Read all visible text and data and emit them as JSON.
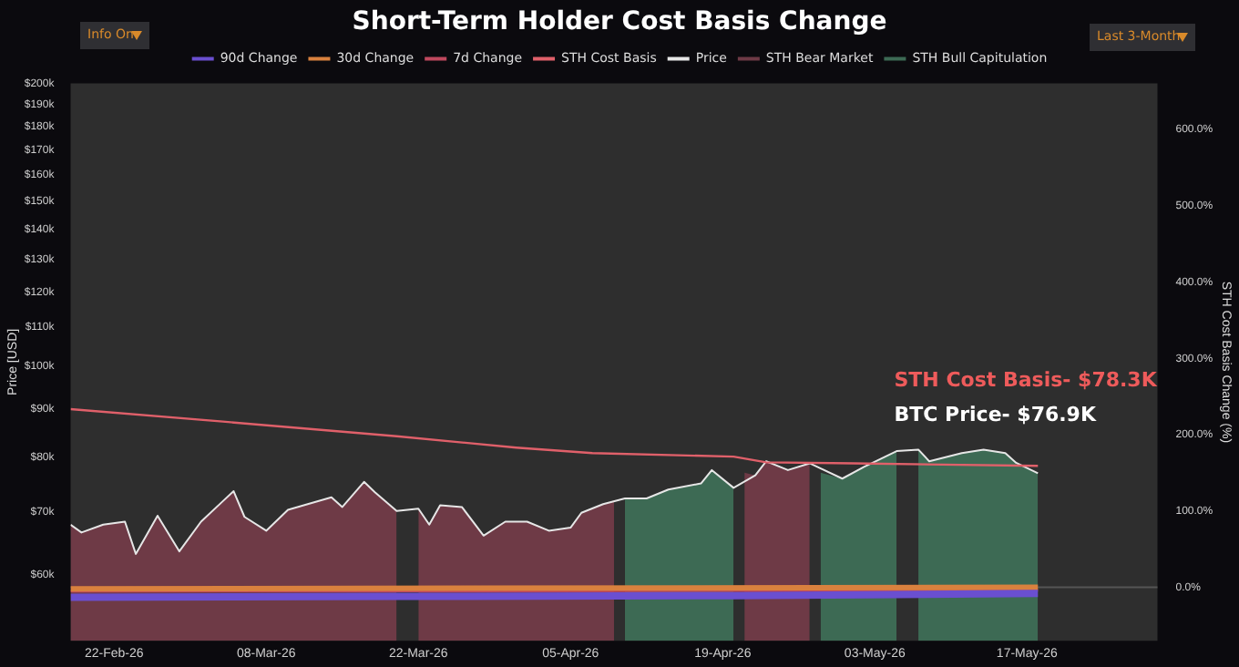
{
  "chart_data": {
    "type": "line",
    "title": "Short-Term Holder Cost Basis Change",
    "ylabel": "Price [USD]",
    "y2label": "STH Cost Basis Change (%)",
    "xlim": [
      "2026-02-18",
      "2026-05-29"
    ],
    "xticks": [
      {
        "value": "2026-02-22",
        "label": "22-Feb-26"
      },
      {
        "value": "2026-03-08",
        "label": "08-Mar-26"
      },
      {
        "value": "2026-03-22",
        "label": "22-Mar-26"
      },
      {
        "value": "2026-04-05",
        "label": "05-Apr-26"
      },
      {
        "value": "2026-04-19",
        "label": "19-Apr-26"
      },
      {
        "value": "2026-05-03",
        "label": "03-May-26"
      },
      {
        "value": "2026-05-17",
        "label": "17-May-26"
      }
    ],
    "log": "y",
    "ylim": [
      51000,
      200000
    ],
    "yticks": [
      {
        "value": 60000,
        "label": "$60k"
      },
      {
        "value": 70000,
        "label": "$70k"
      },
      {
        "value": 80000,
        "label": "$80k"
      },
      {
        "value": 90000,
        "label": "$90k"
      },
      {
        "value": 100000,
        "label": "$100k"
      },
      {
        "value": 110000,
        "label": "$110k"
      },
      {
        "value": 120000,
        "label": "$120k"
      },
      {
        "value": 130000,
        "label": "$130k"
      },
      {
        "value": 140000,
        "label": "$140k"
      },
      {
        "value": 150000,
        "label": "$150k"
      },
      {
        "value": 160000,
        "label": "$160k"
      },
      {
        "value": 170000,
        "label": "$170k"
      },
      {
        "value": 180000,
        "label": "$180k"
      },
      {
        "value": 190000,
        "label": "$190k"
      },
      {
        "value": 200000,
        "label": "$200k"
      }
    ],
    "y2lim": [
      -70,
      660
    ],
    "y2ticks": [
      {
        "value": 0,
        "label": "0.0%"
      },
      {
        "value": 100,
        "label": "100.0%"
      },
      {
        "value": 200,
        "label": "200.0%"
      },
      {
        "value": 300,
        "label": "300.0%"
      },
      {
        "value": 400,
        "label": "400.0%"
      },
      {
        "value": 500,
        "label": "500.0%"
      },
      {
        "value": 600,
        "label": "600.0%"
      }
    ],
    "grid": false,
    "legend": "top",
    "marker": "none",
    "line_style": "solid",
    "ref_lines": [
      {
        "axis": "y2",
        "value": 0,
        "color": "#555555"
      }
    ],
    "annotations": [
      "STH Cost Basis- $78.3K",
      "BTC Price- $76.9K",
      "Info On",
      "Last 3-Month"
    ],
    "series": [
      {
        "name": "90d Change",
        "type": "line",
        "axis": "y2",
        "color": "#6a4fd0",
        "x": [
          "2026-02-18",
          "2026-03-20",
          "2026-04-20",
          "2026-05-18"
        ],
        "values": [
          -13,
          -12,
          -11,
          -8
        ]
      },
      {
        "name": "30d Change",
        "type": "line",
        "axis": "y2",
        "color": "#d9813e",
        "x": [
          "2026-02-18",
          "2026-05-18"
        ],
        "values": [
          -2,
          0
        ]
      },
      {
        "name": "7d Change",
        "type": "line",
        "axis": "y2",
        "color": "#c0485e",
        "x": [
          "2026-02-18",
          "2026-05-18"
        ],
        "values": [
          -5,
          -4
        ]
      },
      {
        "name": "STH Cost Basis",
        "type": "line",
        "color": "#e0606a",
        "x": [
          "2026-02-18",
          "2026-03-04",
          "2026-03-20",
          "2026-03-31",
          "2026-04-07",
          "2026-04-20",
          "2026-04-23",
          "2026-05-01",
          "2026-05-18"
        ],
        "values": [
          90000,
          87300,
          84200,
          81900,
          80800,
          80100,
          79000,
          78800,
          78300
        ]
      },
      {
        "name": "Price",
        "type": "line",
        "color": "#e6e6e6",
        "x": [
          "2026-02-18",
          "2026-02-19",
          "2026-02-21",
          "2026-02-23",
          "2026-02-24",
          "2026-02-26",
          "2026-02-28",
          "2026-03-02",
          "2026-03-04",
          "2026-03-05",
          "2026-03-06",
          "2026-03-08",
          "2026-03-10",
          "2026-03-14",
          "2026-03-15",
          "2026-03-17",
          "2026-03-18",
          "2026-03-20",
          "2026-03-22",
          "2026-03-23",
          "2026-03-24",
          "2026-03-26",
          "2026-03-28",
          "2026-03-30",
          "2026-04-01",
          "2026-04-03",
          "2026-04-05",
          "2026-04-06",
          "2026-04-08",
          "2026-04-10",
          "2026-04-12",
          "2026-04-14",
          "2026-04-17",
          "2026-04-18",
          "2026-04-20",
          "2026-04-22",
          "2026-04-23",
          "2026-04-25",
          "2026-04-27",
          "2026-04-30",
          "2026-05-02",
          "2026-05-05",
          "2026-05-07",
          "2026-05-08",
          "2026-05-11",
          "2026-05-13",
          "2026-05-15",
          "2026-05-16",
          "2026-05-18"
        ],
        "values": [
          67800,
          66500,
          67800,
          68300,
          63100,
          69300,
          63500,
          68300,
          71800,
          73600,
          69100,
          66800,
          70300,
          72500,
          70800,
          75300,
          73400,
          70100,
          70500,
          67800,
          71100,
          70800,
          66000,
          68300,
          68300,
          66800,
          67300,
          69800,
          71300,
          72300,
          72300,
          73900,
          75000,
          77500,
          74200,
          76500,
          79200,
          77500,
          78800,
          75900,
          78100,
          81200,
          81500,
          79200,
          80800,
          81500,
          80800,
          78900,
          76900
        ]
      },
      {
        "name": "STH Bear Market",
        "type": "area",
        "color": "#6e3a46",
        "x": [
          "2026-02-18",
          "2026-02-19",
          "2026-02-21",
          "2026-02-23",
          "2026-02-24",
          "2026-02-26",
          "2026-02-28",
          "2026-03-02",
          "2026-03-04",
          "2026-03-05",
          "2026-03-06",
          "2026-03-08",
          "2026-03-10",
          "2026-03-14",
          "2026-03-15",
          "2026-03-17",
          "2026-03-18",
          "2026-03-20",
          "2026-03-21",
          "2026-03-22",
          "2026-03-23",
          "2026-03-24",
          "2026-03-26",
          "2026-03-28",
          "2026-03-30",
          "2026-04-01",
          "2026-04-03",
          "2026-04-05",
          "2026-04-06",
          "2026-04-08",
          "2026-04-09",
          "2026-04-10",
          "2026-04-21",
          "2026-04-22",
          "2026-04-23",
          "2026-04-25",
          "2026-04-27"
        ],
        "values": [
          67800,
          66500,
          67800,
          68300,
          63100,
          69300,
          63500,
          68300,
          71800,
          73600,
          69100,
          66800,
          70300,
          72500,
          70800,
          75300,
          73400,
          70100,
          null,
          70500,
          67800,
          71100,
          70800,
          66000,
          68300,
          68300,
          66800,
          67300,
          69800,
          71300,
          71800,
          null,
          77000,
          76500,
          79200,
          77500,
          78800
        ]
      },
      {
        "name": "STH Bull Capitulation",
        "type": "area",
        "color": "#3d6a54",
        "x": [
          "2026-04-10",
          "2026-04-12",
          "2026-04-14",
          "2026-04-17",
          "2026-04-18",
          "2026-04-20",
          "2026-04-21",
          "2026-04-28",
          "2026-04-30",
          "2026-05-02",
          "2026-05-05",
          "2026-05-06",
          "2026-05-07",
          "2026-05-08",
          "2026-05-11",
          "2026-05-13",
          "2026-05-15",
          "2026-05-16",
          "2026-05-18"
        ],
        "values": [
          72300,
          72300,
          73900,
          75000,
          77500,
          74200,
          null,
          77000,
          75900,
          78100,
          81200,
          null,
          81500,
          79200,
          80800,
          81500,
          80800,
          78900,
          76900
        ]
      }
    ]
  }
}
